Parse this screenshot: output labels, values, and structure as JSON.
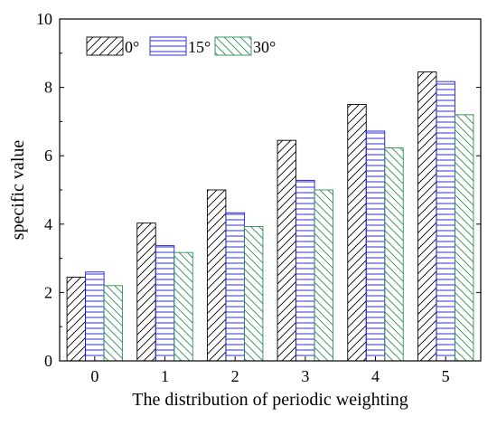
{
  "chart_data": {
    "type": "bar",
    "categories": [
      "0",
      "1",
      "2",
      "3",
      "4",
      "5"
    ],
    "series": [
      {
        "name": "0°",
        "values": [
          2.45,
          4.03,
          5.0,
          6.45,
          7.5,
          8.45
        ],
        "color": "#000000",
        "pattern": "diagonal-up"
      },
      {
        "name": "15°",
        "values": [
          2.6,
          3.37,
          4.33,
          5.28,
          6.72,
          8.17
        ],
        "color": "#1a1ad6",
        "pattern": "horizontal"
      },
      {
        "name": "30°",
        "values": [
          2.2,
          3.17,
          3.93,
          5.0,
          6.23,
          7.2
        ],
        "color": "#2e8b57",
        "pattern": "diagonal-down"
      }
    ],
    "xlabel": "The distribution of periodic weighting",
    "ylabel": "specific value",
    "ylim": [
      0,
      10
    ],
    "yticks": [
      "0",
      "2",
      "4",
      "6",
      "8",
      "10"
    ],
    "grid": false,
    "legend_position": "top-left"
  }
}
